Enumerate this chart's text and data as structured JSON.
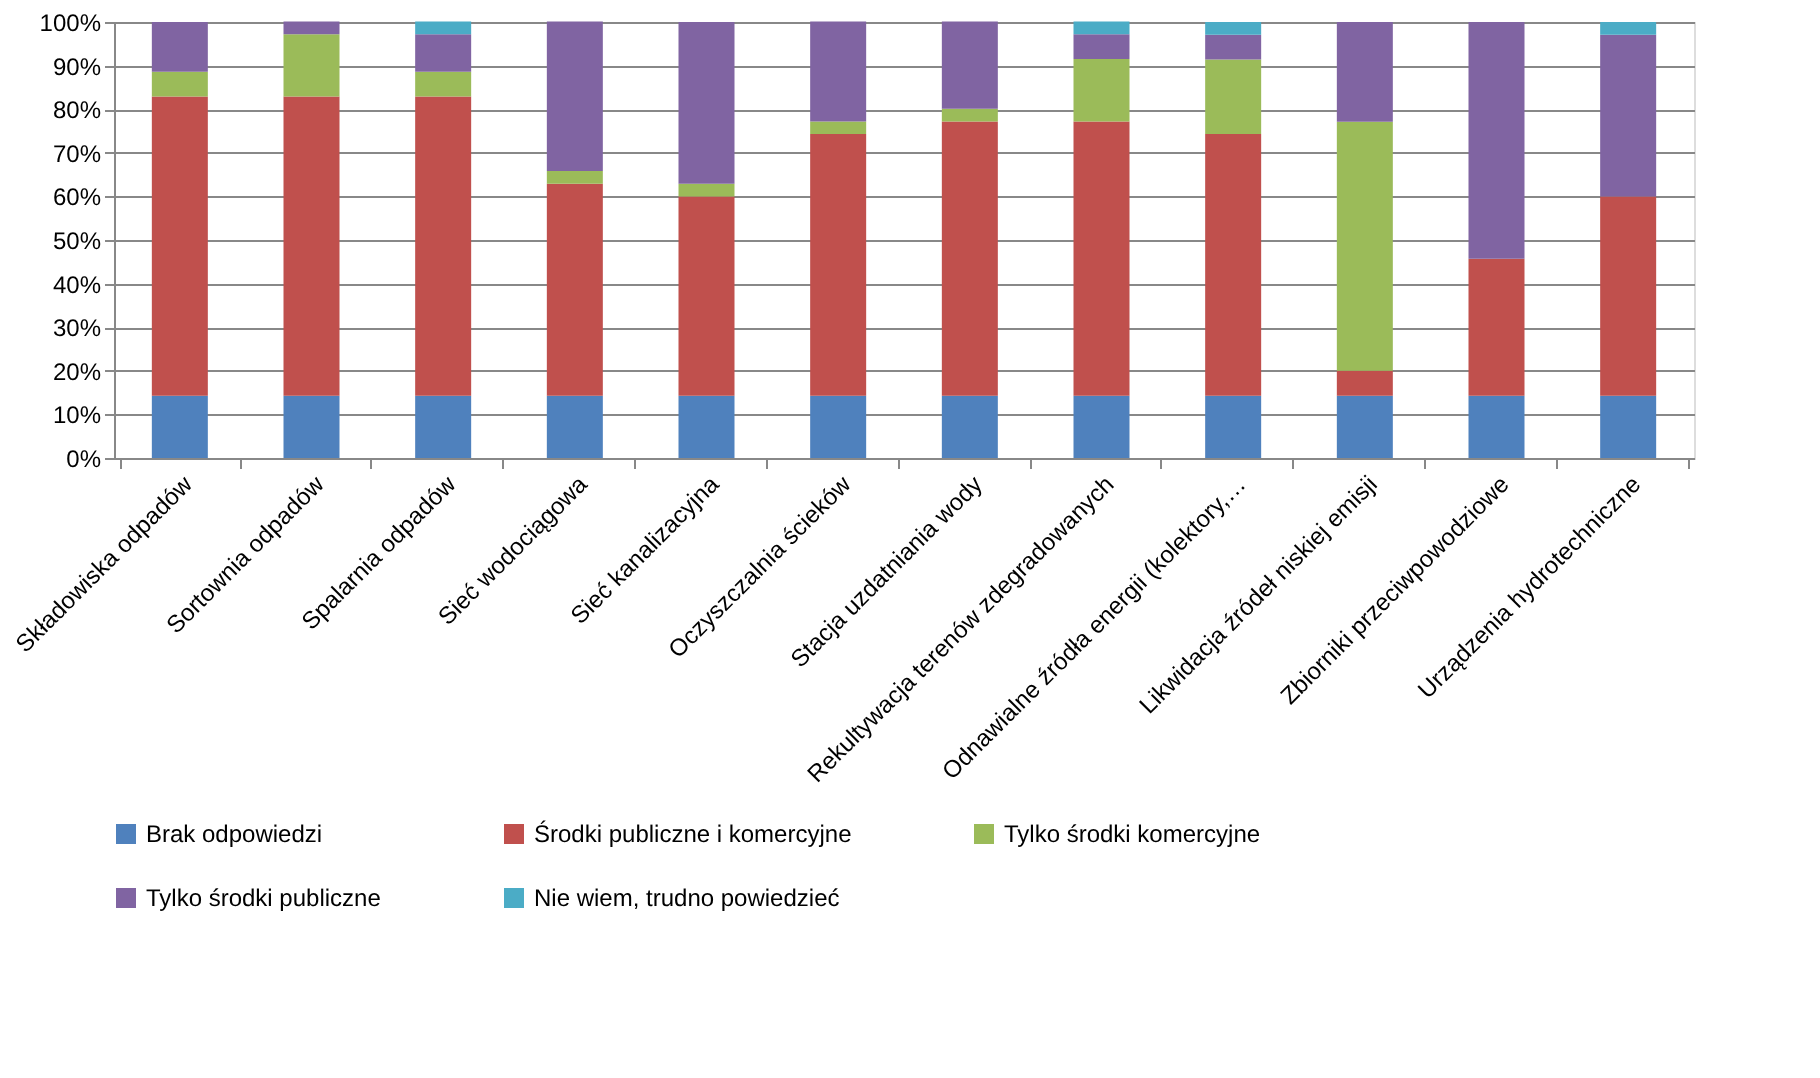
{
  "chart_data": {
    "type": "bar",
    "stacked": true,
    "categories": [
      "Składowiska odpadów",
      "Sortownia odpadów",
      "Spalarnia odpadów",
      "Sieć wodociągowa",
      "Sieć kanalizacyjna",
      "Oczyszczalnia ścieków",
      "Stacja uzdatniania wody",
      "Rekultywacja terenów zdegradowanych",
      "Odnawialne źródła energii (kolektory,…",
      "Likwidacja źródeł niskiej emisji",
      "Zbiorniki przeciwpowodziowe",
      "Urządzenia hydrotechniczne"
    ],
    "series": [
      {
        "name": "Brak odpowiedzi",
        "color": "#4f81bd",
        "values": [
          14.3,
          14.3,
          14.3,
          14.3,
          14.3,
          14.3,
          14.3,
          14.3,
          14.3,
          14.3,
          14.3,
          14.3
        ]
      },
      {
        "name": "Środki publiczne i komercyjne",
        "color": "#c0504d",
        "values": [
          68.6,
          68.6,
          68.6,
          48.6,
          45.7,
          60,
          62.9,
          62.9,
          60,
          5.7,
          31.4,
          45.7
        ]
      },
      {
        "name": "Tylko środki komercyjne",
        "color": "#9bbb59",
        "values": [
          5.7,
          14.3,
          5.7,
          2.9,
          2.9,
          2.9,
          2.9,
          14.3,
          17.1,
          57.1,
          0,
          0
        ]
      },
      {
        "name": "Tylko środki publiczne",
        "color": "#8064a2",
        "values": [
          11.4,
          2.9,
          8.6,
          34.3,
          37.1,
          22.9,
          20,
          5.7,
          5.7,
          22.9,
          54.3,
          37.1
        ]
      },
      {
        "name": "Nie wiem, trudno powiedzieć",
        "color": "#4bacc6",
        "values": [
          0,
          0,
          2.9,
          0,
          0,
          0,
          0,
          2.9,
          2.9,
          0,
          0,
          2.9
        ]
      }
    ],
    "ylim": [
      0,
      100
    ],
    "yticks": [
      {
        "value": 0,
        "label": "0%"
      },
      {
        "value": 10,
        "label": "10%"
      },
      {
        "value": 20,
        "label": "20%"
      },
      {
        "value": 30,
        "label": "30%"
      },
      {
        "value": 40,
        "label": "40%"
      },
      {
        "value": 50,
        "label": "50%"
      },
      {
        "value": 60,
        "label": "60%"
      },
      {
        "value": 70,
        "label": "70%"
      },
      {
        "value": 80,
        "label": "80%"
      },
      {
        "value": 90,
        "label": "90%"
      },
      {
        "value": 100,
        "label": "100%"
      }
    ],
    "grid": "y",
    "legend": "bottom"
  }
}
